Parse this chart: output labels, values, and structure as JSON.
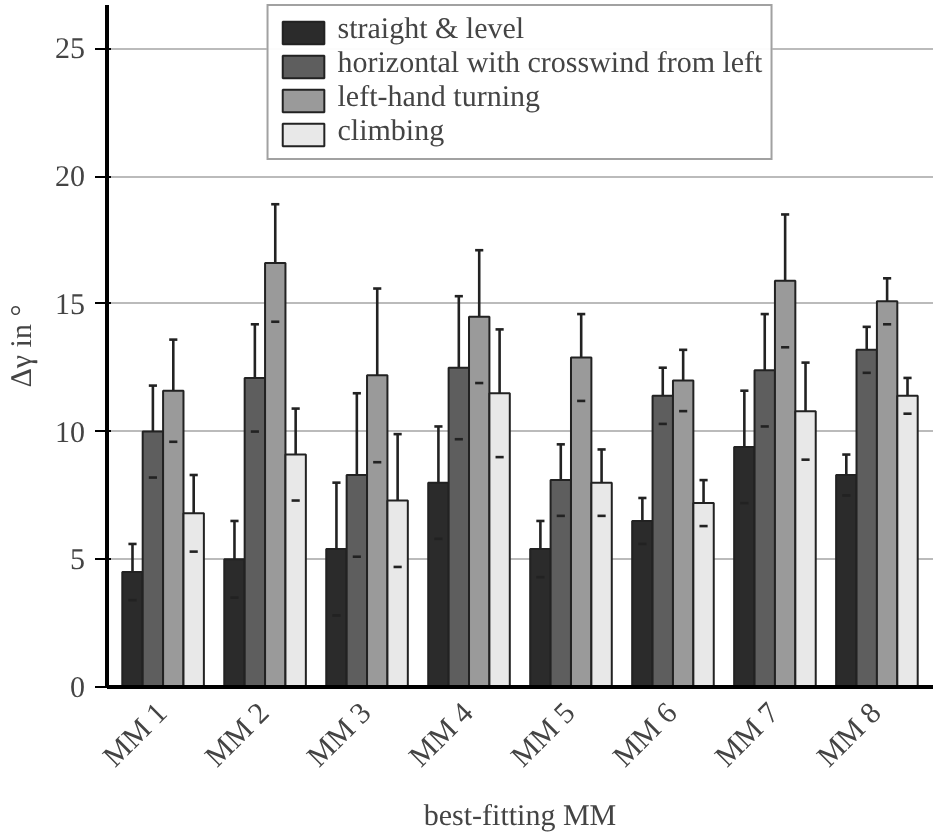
{
  "chart_data": {
    "type": "bar",
    "xlabel": "best-fitting MM",
    "ylabel": "Δγ in °",
    "categories": [
      "MM 1",
      "MM 2",
      "MM 3",
      "MM 4",
      "MM 5",
      "MM 6",
      "MM 7",
      "MM 8"
    ],
    "series": [
      {
        "name": "straight & level",
        "color": "#2b2b2b",
        "values": [
          4.5,
          5.0,
          5.4,
          8.0,
          5.4,
          6.5,
          9.4,
          8.3
        ],
        "errors": [
          1.1,
          1.5,
          2.6,
          2.2,
          1.1,
          0.9,
          2.2,
          0.8
        ]
      },
      {
        "name": "horizontal with crosswind from left",
        "color": "#5e5e5e",
        "values": [
          10.0,
          12.1,
          8.3,
          12.5,
          8.1,
          11.4,
          12.4,
          13.2
        ],
        "errors": [
          1.8,
          2.1,
          3.2,
          2.8,
          1.4,
          1.1,
          2.2,
          0.9
        ]
      },
      {
        "name": "left-hand turning",
        "color": "#9a9a9a",
        "values": [
          11.6,
          16.6,
          12.2,
          14.5,
          12.9,
          12.0,
          15.9,
          15.1
        ],
        "errors": [
          2.0,
          2.3,
          3.4,
          2.6,
          1.7,
          1.2,
          2.6,
          0.9
        ]
      },
      {
        "name": "climbing",
        "color": "#e8e8e8",
        "values": [
          6.8,
          9.1,
          7.3,
          11.5,
          8.0,
          7.2,
          10.8,
          11.4
        ],
        "errors": [
          1.5,
          1.8,
          2.6,
          2.5,
          1.3,
          0.9,
          1.9,
          0.7
        ]
      }
    ],
    "ylim": [
      0,
      26.7
    ],
    "yticks": [
      0,
      5,
      10,
      15,
      20,
      25
    ],
    "grid": "y",
    "legend": "top"
  }
}
